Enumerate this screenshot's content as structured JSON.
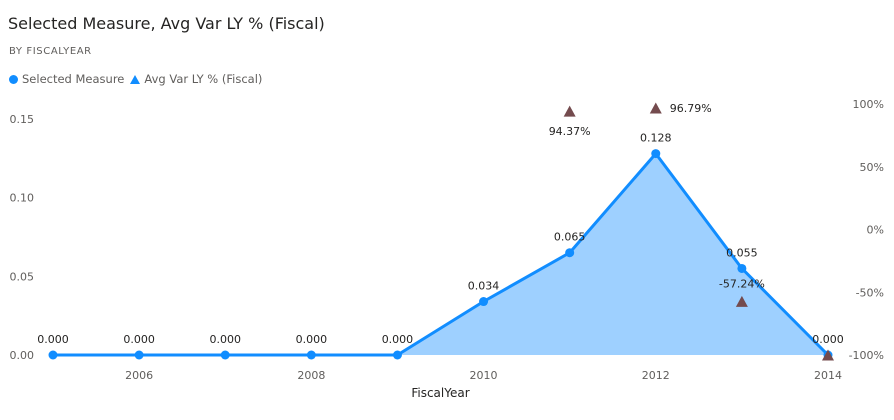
{
  "title": "Selected Measure, Avg Var LY % (Fiscal)",
  "subtitle": "BY FISCALYEAR",
  "legend": [
    {
      "label": "Selected Measure",
      "marker": "circle",
      "color": "#118DFF"
    },
    {
      "label": "Avg Var LY % (Fiscal)",
      "marker": "triangle",
      "color": "#118DFF"
    }
  ],
  "chart_data": {
    "type": "area",
    "title": "Selected Measure, Avg Var LY % (Fiscal)",
    "subtitle": "BY FISCALYEAR",
    "xlabel": "FiscalYear",
    "x": [
      2005,
      2006,
      2007,
      2008,
      2009,
      2010,
      2011,
      2012,
      2013,
      2014
    ],
    "x_ticks": [
      2006,
      2008,
      2010,
      2012,
      2014
    ],
    "xlim": [
      2005,
      2014
    ],
    "ylim": [
      0,
      0.15
    ],
    "y_ticks": [
      0.0,
      0.05,
      0.1,
      0.15
    ],
    "y_tick_labels": [
      "0.00",
      "0.05",
      "0.10",
      "0.15"
    ],
    "y2lim": [
      -100,
      100
    ],
    "y2_ticks": [
      -100,
      -50,
      0,
      50,
      100
    ],
    "y2_tick_labels": [
      "-100%",
      "-50%",
      "0%",
      "50%",
      "100%"
    ],
    "grid": false,
    "legend_position": "top-left",
    "series": [
      {
        "name": "Selected Measure",
        "axis": "left",
        "marker": "circle",
        "line_color": "#118DFF",
        "fill_color": "#9ED0FF",
        "values": [
          0.0,
          0.0,
          0.0,
          0.0,
          0.0,
          0.034,
          0.065,
          0.128,
          0.055,
          0.0
        ],
        "labels": [
          "0.000",
          "0.000",
          "0.000",
          "0.000",
          "0.000",
          "0.034",
          "0.065",
          "0.128",
          "0.055",
          "0.000"
        ]
      },
      {
        "name": "Avg Var LY % (Fiscal)",
        "axis": "right",
        "marker": "triangle",
        "marker_color": "#744B4E",
        "points": [
          {
            "x": 2011,
            "y": 94.37,
            "label": "94.37%",
            "label_pos": "below"
          },
          {
            "x": 2012,
            "y": 96.79,
            "label": "96.79%",
            "label_pos": "right"
          },
          {
            "x": 2013,
            "y": -57.24,
            "label": "-57.24%",
            "label_pos": "above"
          },
          {
            "x": 2014,
            "y": -100,
            "label": "",
            "label_pos": "none"
          }
        ]
      }
    ]
  }
}
